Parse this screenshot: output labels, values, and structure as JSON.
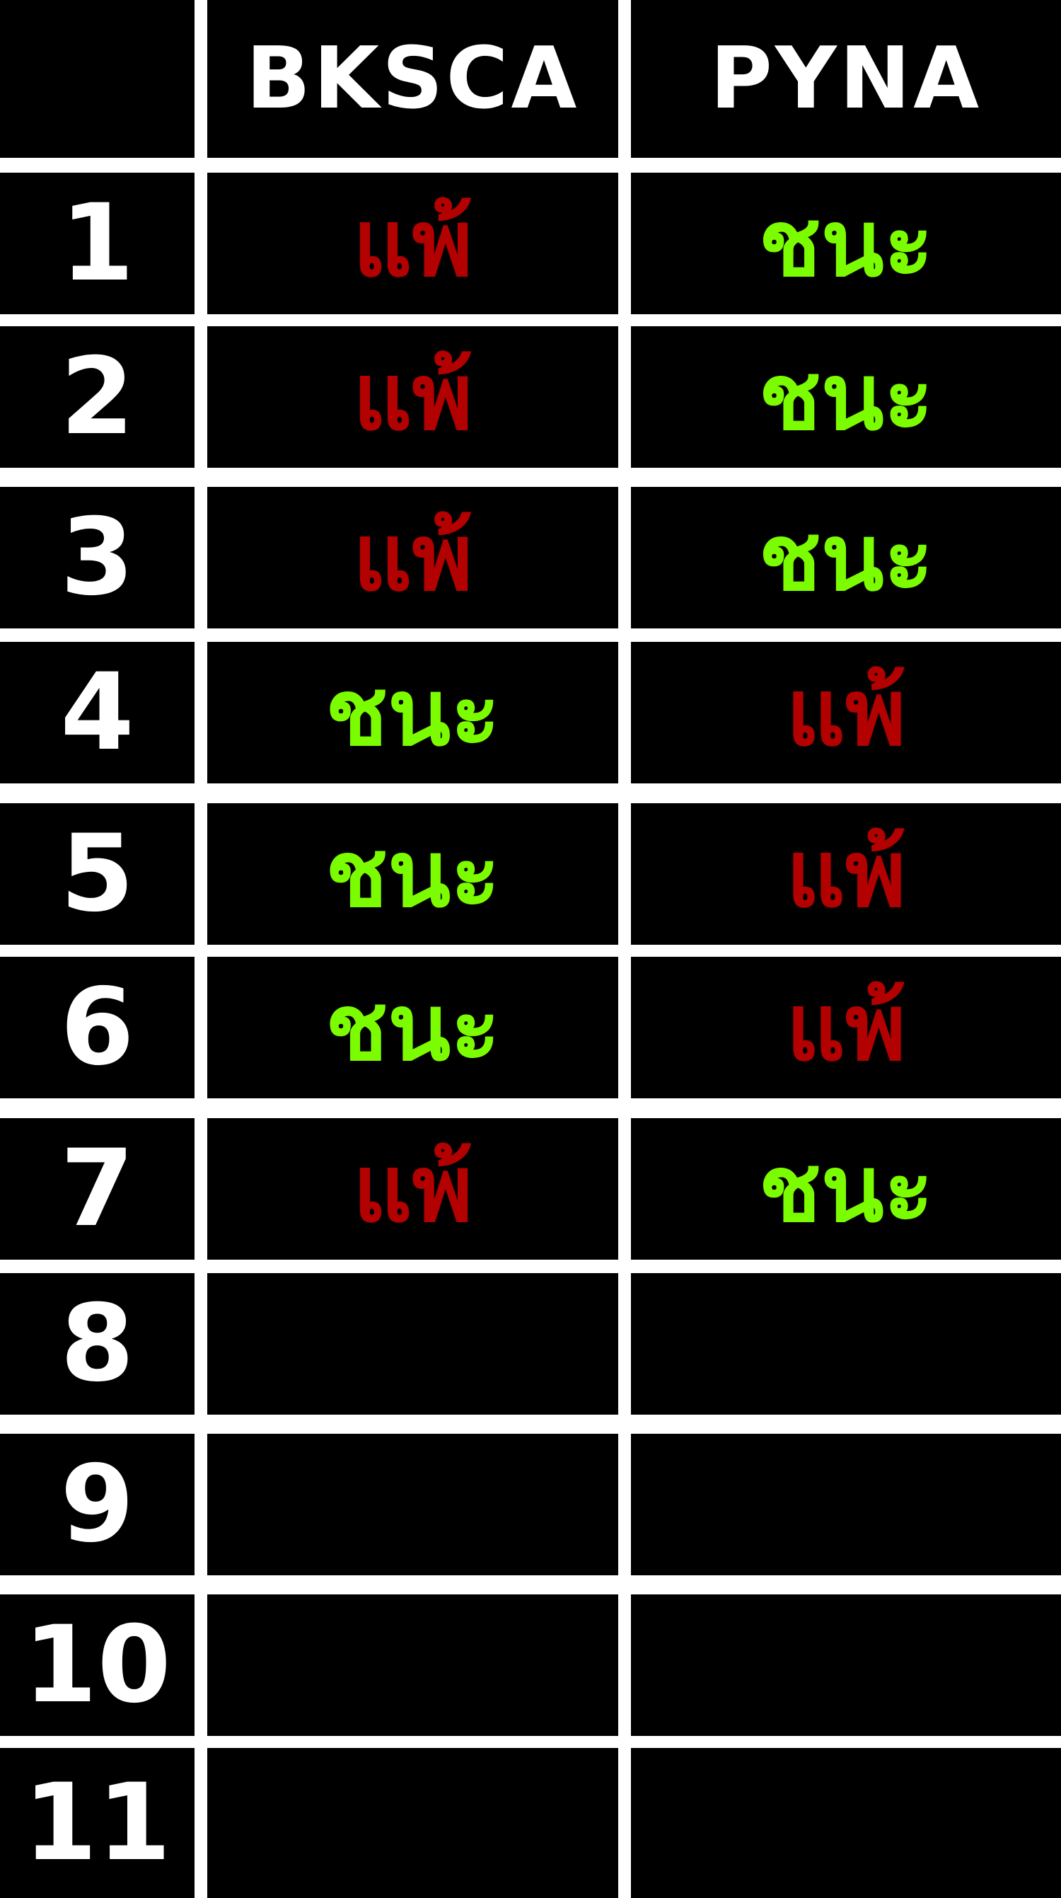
{
  "table": {
    "headers": [
      "",
      "BKSCA",
      "PYNA"
    ],
    "rows": [
      {
        "num": "1",
        "bksca": "แพ้",
        "pyna": "ชนะ"
      },
      {
        "num": "2",
        "bksca": "แพ้",
        "pyna": "ชนะ"
      },
      {
        "num": "3",
        "bksca": "แพ้",
        "pyna": "ชนะ"
      },
      {
        "num": "4",
        "bksca": "ชนะ",
        "pyna": "แพ้"
      },
      {
        "num": "5",
        "bksca": "ชนะ",
        "pyna": "แพ้"
      },
      {
        "num": "6",
        "bksca": "ชนะ",
        "pyna": "แพ้"
      },
      {
        "num": "7",
        "bksca": "แพ้",
        "pyna": "ชนะ"
      },
      {
        "num": "8",
        "bksca": "",
        "pyna": ""
      },
      {
        "num": "9",
        "bksca": "",
        "pyna": ""
      },
      {
        "num": "10",
        "bksca": "",
        "pyna": ""
      },
      {
        "num": "11",
        "bksca": "",
        "pyna": ""
      }
    ]
  },
  "colors": {
    "win": "#7cfc00",
    "lose": "#b30000",
    "cell_bg": "#000000",
    "grid": "#ffffff"
  }
}
